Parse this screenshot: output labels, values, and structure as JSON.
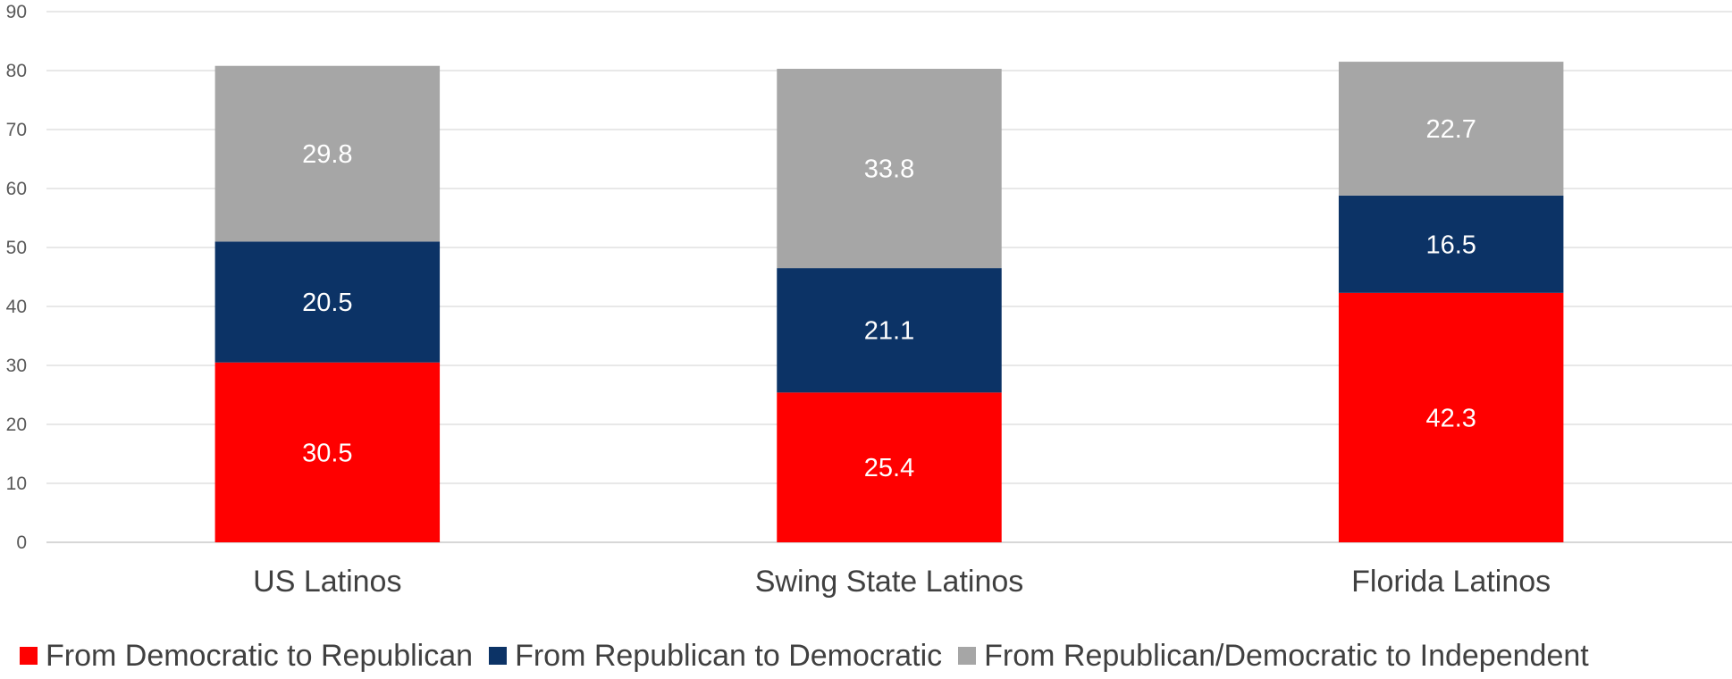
{
  "chart_data": {
    "type": "bar",
    "stacked": true,
    "categories": [
      "US Latinos",
      "Swing State Latinos",
      "Florida Latinos"
    ],
    "series": [
      {
        "name": "From Democratic to Republican",
        "color": "#FF0000",
        "values": [
          30.5,
          25.4,
          42.3
        ]
      },
      {
        "name": "From Republican to Democratic",
        "color": "#0C3366",
        "values": [
          20.5,
          21.1,
          16.5
        ]
      },
      {
        "name": "From Republican/Democratic to Independent",
        "color": "#A6A6A6",
        "values": [
          29.8,
          33.8,
          22.7
        ]
      }
    ],
    "ylim": [
      0,
      90
    ],
    "yticks": [
      0,
      10,
      20,
      30,
      40,
      50,
      60,
      70,
      80,
      90
    ],
    "grid": true,
    "legend_position": "bottom",
    "title": "",
    "xlabel": "",
    "ylabel": ""
  }
}
